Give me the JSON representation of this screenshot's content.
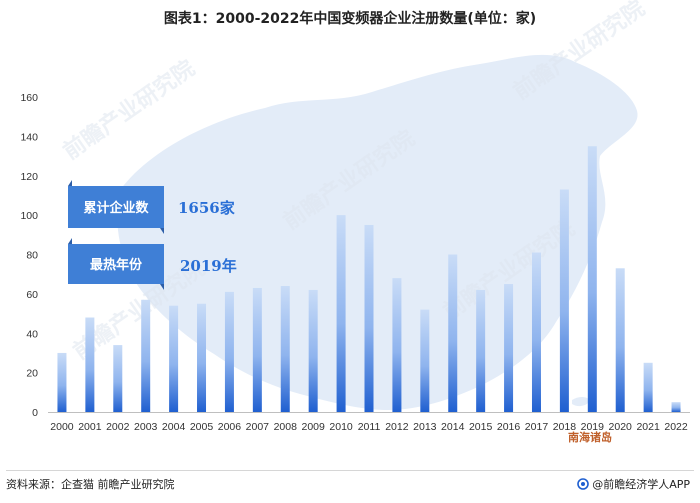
{
  "title": "图表1：2000-2022年中国变频器企业注册数量(单位：家)",
  "callouts": [
    {
      "label": "累计企业数",
      "value": "1656家"
    },
    {
      "label": "最热年份",
      "value": "2019年"
    }
  ],
  "map_label": "南海诸岛",
  "watermarks": [
    "前瞻产业研究院",
    "前瞻产业研究院",
    "前瞻产业研究院",
    "前瞻产业研究院",
    "前瞻产业研究院"
  ],
  "source": "资料来源：企查猫 前瞻产业研究院",
  "brand": "@前瞻经济学人APP",
  "colors": {
    "bar_top": "#c9dcf7",
    "bar_bottom": "#1f5fd0",
    "callout": "#3f7fd6",
    "callout_value": "#2a6fd6",
    "map": "#e1ebf7"
  },
  "chart_data": {
    "type": "bar",
    "categories": [
      "2000",
      "2001",
      "2002",
      "2003",
      "2004",
      "2005",
      "2006",
      "2007",
      "2008",
      "2009",
      "2010",
      "2011",
      "2012",
      "2013",
      "2014",
      "2015",
      "2016",
      "2017",
      "2018",
      "2019",
      "2020",
      "2021",
      "2022"
    ],
    "values": [
      30,
      48,
      34,
      57,
      54,
      55,
      61,
      63,
      64,
      62,
      100,
      95,
      68,
      52,
      80,
      62,
      65,
      81,
      113,
      135,
      73,
      25,
      5
    ],
    "yticks": [
      0,
      20,
      40,
      60,
      80,
      100,
      120,
      140,
      160
    ],
    "ylim": [
      0,
      160
    ],
    "title": "图表1：2000-2022年中国变频器企业注册数量(单位：家)",
    "grid": false,
    "legend": false
  }
}
